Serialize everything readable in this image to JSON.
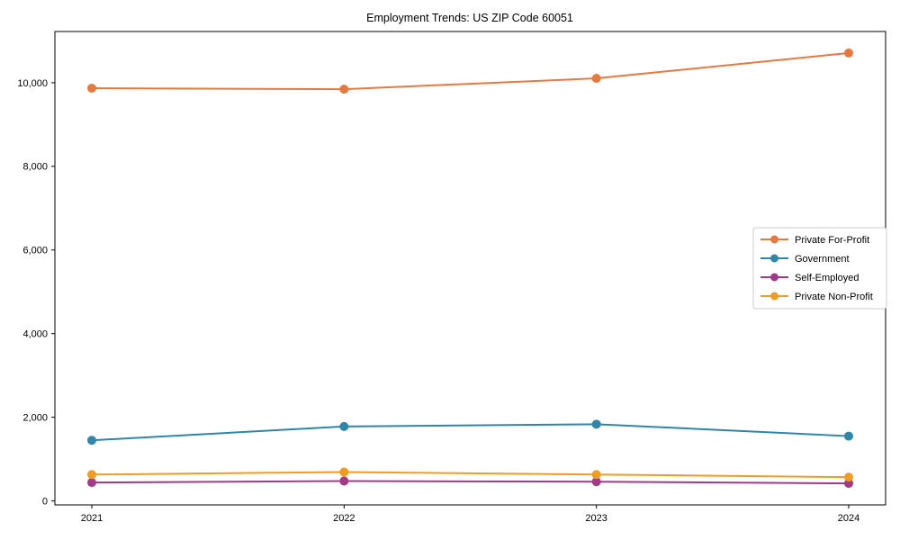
{
  "page": {
    "background": "#ffffff"
  },
  "chart_data": {
    "type": "line",
    "title": "Employment Trends: US ZIP Code 60051",
    "xlabel": "",
    "ylabel": "",
    "categories": [
      "2021",
      "2022",
      "2023",
      "2024"
    ],
    "series": [
      {
        "name": "Private For-Profit",
        "color": "#e8793e",
        "values": [
          9870,
          9845,
          10105,
          10710
        ]
      },
      {
        "name": "Government",
        "color": "#2e86ab",
        "values": [
          1450,
          1780,
          1835,
          1550
        ]
      },
      {
        "name": "Self-Employed",
        "color": "#a23a87",
        "values": [
          440,
          475,
          460,
          420
        ]
      },
      {
        "name": "Private Non-Profit",
        "color": "#f09c23",
        "values": [
          630,
          690,
          630,
          570
        ]
      }
    ],
    "ylim": [
      -95,
      11225
    ],
    "yticks": [
      0,
      2000,
      4000,
      6000,
      8000,
      10000
    ],
    "grid": false,
    "legend_position": "center right",
    "marker": "circle",
    "axis_color": "#000000",
    "legend_border_color": "#cccccc"
  }
}
